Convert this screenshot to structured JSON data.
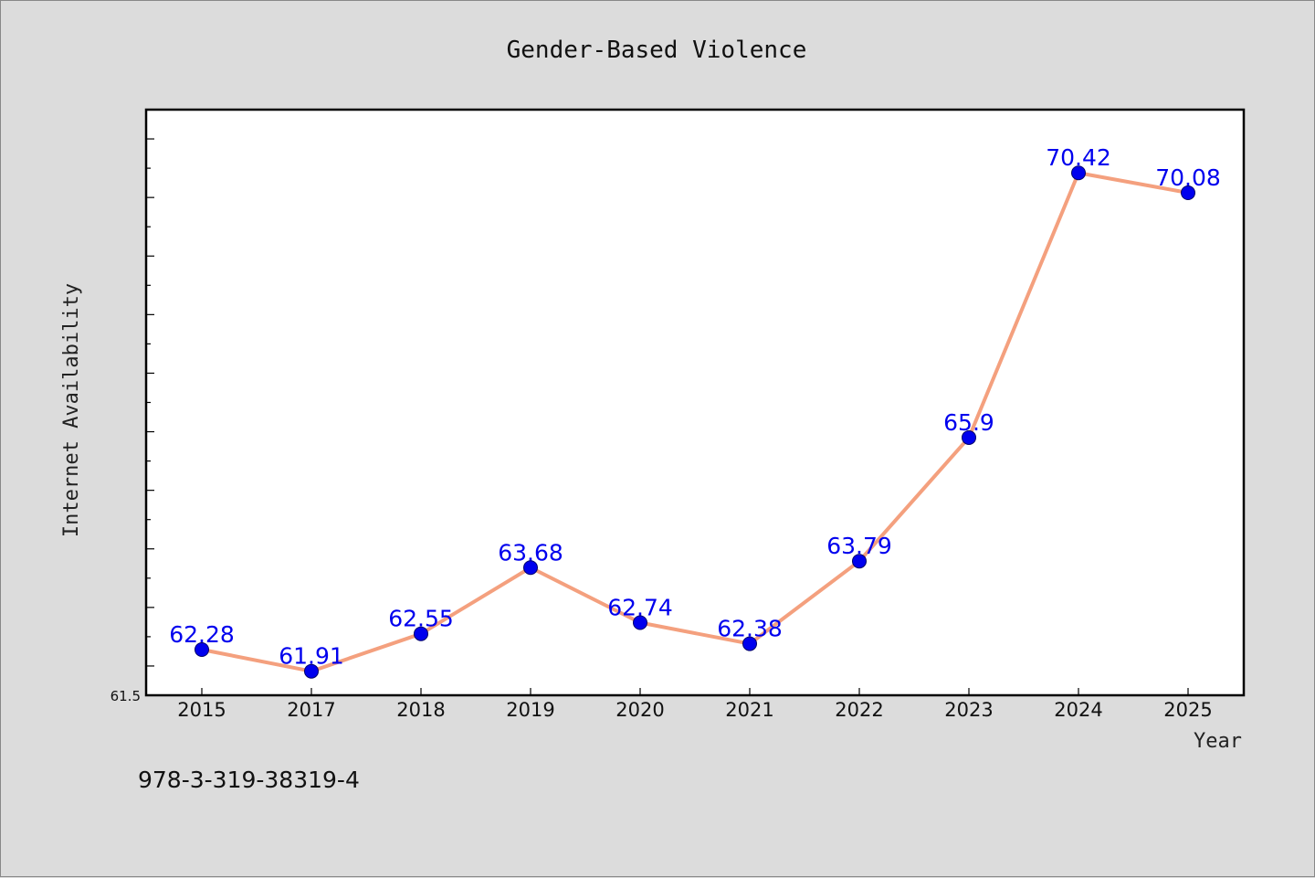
{
  "chart_data": {
    "type": "line",
    "title": "Gender-Based Violence",
    "xlabel": "Year",
    "ylabel": "Internet Availability",
    "categories": [
      "2015",
      "2017",
      "2018",
      "2019",
      "2020",
      "2021",
      "2022",
      "2023",
      "2024",
      "2025"
    ],
    "values": [
      62.28,
      61.91,
      62.55,
      63.68,
      62.74,
      62.38,
      63.79,
      65.9,
      70.42,
      70.08
    ],
    "ylim": [
      61.5,
      71.5
    ],
    "y_min_label": "61.5",
    "grid": false,
    "line_color": "#f4a07e",
    "marker_color": "#0000ee",
    "label_color": "#0000ee",
    "background": "#dcdcdc",
    "plot_background": "#ffffff"
  },
  "footer_text": "978-3-319-38319-4"
}
